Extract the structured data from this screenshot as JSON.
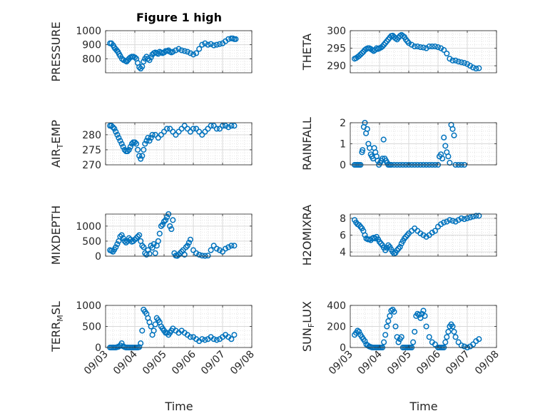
{
  "figure": {
    "title": "Figure 1 high",
    "xlabel": "Time"
  },
  "chart_data": [
    {
      "type": "scatter",
      "ylabel": "PRESSURE",
      "ylabel_sub": null,
      "xlim": [
        0,
        5
      ],
      "ylim": [
        700,
        1000
      ],
      "yticks": [
        800,
        900,
        1000
      ],
      "x": [
        0.15,
        0.2,
        0.26,
        0.3,
        0.34,
        0.38,
        0.42,
        0.46,
        0.5,
        0.56,
        0.62,
        0.68,
        0.72,
        0.76,
        0.8,
        0.85,
        0.9,
        0.95,
        1.0,
        1.05,
        1.1,
        1.15,
        1.2,
        1.25,
        1.3,
        1.35,
        1.4,
        1.45,
        1.5,
        1.55,
        1.6,
        1.65,
        1.7,
        1.75,
        1.8,
        1.85,
        1.9,
        1.95,
        2.0,
        2.05,
        2.1,
        2.15,
        2.2,
        2.25,
        2.3,
        2.4,
        2.5,
        2.6,
        2.7,
        2.8,
        2.9,
        3.0,
        3.1,
        3.2,
        3.3,
        3.4,
        3.5,
        3.6,
        3.7,
        3.8,
        3.9,
        4.0,
        4.1,
        4.2,
        4.3,
        4.35,
        4.4,
        4.45
      ],
      "y": [
        910,
        910,
        895,
        880,
        870,
        860,
        850,
        835,
        820,
        800,
        790,
        785,
        780,
        790,
        800,
        810,
        815,
        815,
        810,
        800,
        770,
        740,
        730,
        745,
        780,
        800,
        815,
        800,
        790,
        810,
        830,
        840,
        845,
        840,
        835,
        850,
        845,
        840,
        845,
        855,
        855,
        860,
        850,
        845,
        850,
        860,
        870,
        860,
        855,
        850,
        840,
        830,
        840,
        870,
        900,
        910,
        900,
        905,
        895,
        900,
        905,
        910,
        925,
        940,
        945,
        945,
        940,
        940
      ]
    },
    {
      "type": "scatter",
      "ylabel": "THETA",
      "ylabel_sub": null,
      "xlim": [
        0,
        5
      ],
      "ylim": [
        288,
        300
      ],
      "yticks": [
        290,
        295,
        300
      ],
      "x": [
        0.15,
        0.2,
        0.25,
        0.3,
        0.35,
        0.4,
        0.45,
        0.5,
        0.55,
        0.6,
        0.65,
        0.7,
        0.75,
        0.8,
        0.85,
        0.9,
        0.95,
        1.0,
        1.05,
        1.1,
        1.15,
        1.2,
        1.25,
        1.3,
        1.35,
        1.4,
        1.45,
        1.5,
        1.55,
        1.6,
        1.65,
        1.7,
        1.75,
        1.8,
        1.85,
        1.9,
        1.95,
        2.0,
        2.1,
        2.2,
        2.3,
        2.4,
        2.5,
        2.6,
        2.7,
        2.8,
        2.9,
        3.0,
        3.1,
        3.2,
        3.3,
        3.4,
        3.5,
        3.6,
        3.7,
        3.8,
        3.9,
        4.0,
        4.1,
        4.2,
        4.3,
        4.4
      ],
      "y": [
        292,
        292.2,
        292.5,
        292.8,
        293.2,
        293.6,
        294,
        294.5,
        294.8,
        295,
        295,
        294.8,
        294.5,
        294.2,
        294.5,
        295,
        294.8,
        295,
        295.2,
        295.5,
        296,
        296.5,
        297,
        297.5,
        298,
        298.5,
        298.6,
        298.2,
        297.8,
        297.5,
        298,
        298.5,
        298.8,
        298.5,
        298.2,
        297.5,
        297,
        296.5,
        296,
        295.5,
        295.5,
        295.3,
        295.2,
        295,
        295.5,
        295.5,
        295.5,
        295.3,
        295,
        294.5,
        293.5,
        292,
        291.5,
        291.5,
        291.2,
        291,
        290.8,
        290.5,
        290,
        289.5,
        289.2,
        289.3
      ]
    },
    {
      "type": "scatter",
      "ylabel": "AIR",
      "ylabel_sub": "TEMP",
      "xlim": [
        0,
        5
      ],
      "ylim": [
        270,
        284
      ],
      "yticks": [
        270,
        275,
        280
      ],
      "x": [
        0.15,
        0.2,
        0.25,
        0.3,
        0.35,
        0.4,
        0.45,
        0.5,
        0.55,
        0.6,
        0.65,
        0.7,
        0.75,
        0.8,
        0.85,
        0.9,
        0.95,
        1.0,
        1.05,
        1.1,
        1.15,
        1.2,
        1.25,
        1.3,
        1.35,
        1.4,
        1.45,
        1.5,
        1.55,
        1.6,
        1.7,
        1.8,
        1.9,
        2.0,
        2.1,
        2.2,
        2.3,
        2.4,
        2.5,
        2.6,
        2.7,
        2.8,
        2.9,
        3.0,
        3.1,
        3.2,
        3.3,
        3.4,
        3.5,
        3.6,
        3.7,
        3.8,
        3.9,
        4.0,
        4.1,
        4.2,
        4.3,
        4.4
      ],
      "y": [
        283,
        283,
        282.5,
        282,
        281,
        280,
        279,
        278,
        277,
        276,
        275,
        274.5,
        274.5,
        275,
        276,
        277,
        277.5,
        277.5,
        277,
        275,
        273,
        272,
        273,
        275,
        277,
        278,
        279,
        278,
        279,
        280,
        280,
        279,
        280,
        281,
        282,
        282,
        281,
        280,
        281,
        282,
        283,
        282,
        281,
        282,
        282,
        281,
        280,
        281,
        282,
        283,
        283,
        282,
        282,
        283,
        283,
        282.5,
        283,
        283
      ]
    },
    {
      "type": "scatter",
      "ylabel": "RAINFALL",
      "ylabel_sub": null,
      "xlim": [
        0,
        5
      ],
      "ylim": [
        0,
        2
      ],
      "yticks": [
        0,
        1,
        2
      ],
      "x": [
        0.15,
        0.2,
        0.25,
        0.3,
        0.35,
        0.4,
        0.42,
        0.46,
        0.5,
        0.54,
        0.58,
        0.62,
        0.66,
        0.7,
        0.74,
        0.78,
        0.82,
        0.86,
        0.9,
        0.94,
        0.98,
        1.02,
        1.06,
        1.1,
        1.14,
        1.18,
        1.22,
        1.26,
        1.3,
        1.35,
        1.4,
        1.5,
        1.6,
        1.7,
        1.8,
        1.9,
        2.0,
        2.1,
        2.2,
        2.3,
        2.4,
        2.5,
        2.6,
        2.7,
        2.8,
        2.9,
        3.0,
        3.05,
        3.1,
        3.15,
        3.2,
        3.25,
        3.3,
        3.35,
        3.4,
        3.45,
        3.5,
        3.55,
        3.6,
        3.7,
        3.8,
        3.9
      ],
      "y": [
        0,
        0,
        0,
        0,
        0,
        0.6,
        0.7,
        1.8,
        2.0,
        1.5,
        1.7,
        1.0,
        0.8,
        0.5,
        0.4,
        0.3,
        0.8,
        0.6,
        0.4,
        0.2,
        0,
        0.1,
        0.2,
        0.3,
        1.2,
        0.3,
        0.2,
        0.1,
        0,
        0,
        0,
        0,
        0,
        0,
        0,
        0,
        0,
        0,
        0,
        0,
        0,
        0,
        0,
        0,
        0,
        0,
        0,
        0.4,
        0.5,
        0.3,
        1.3,
        0.9,
        0.6,
        0.4,
        0.1,
        1.9,
        1.7,
        1.4,
        0,
        0,
        0,
        0
      ]
    },
    {
      "type": "scatter",
      "ylabel": "MIXDEPTH",
      "ylabel_sub": null,
      "xlim": [
        0,
        5
      ],
      "ylim": [
        0,
        1400
      ],
      "yticks": [
        0,
        500,
        1000
      ],
      "x": [
        0.15,
        0.2,
        0.25,
        0.3,
        0.35,
        0.4,
        0.45,
        0.5,
        0.55,
        0.6,
        0.65,
        0.7,
        0.75,
        0.8,
        0.85,
        0.9,
        0.95,
        1.0,
        1.05,
        1.1,
        1.15,
        1.2,
        1.25,
        1.3,
        1.35,
        1.4,
        1.45,
        1.5,
        1.55,
        1.6,
        1.65,
        1.7,
        1.75,
        1.8,
        1.85,
        1.9,
        1.95,
        2.0,
        2.05,
        2.1,
        2.15,
        2.2,
        2.25,
        2.3,
        2.35,
        2.4,
        2.45,
        2.5,
        2.55,
        2.6,
        2.65,
        2.7,
        2.75,
        2.8,
        2.85,
        2.9,
        3.0,
        3.1,
        3.2,
        3.3,
        3.4,
        3.5,
        3.6,
        3.7,
        3.8,
        3.9,
        4.0,
        4.1,
        4.2,
        4.3,
        4.4
      ],
      "y": [
        200,
        180,
        150,
        220,
        300,
        400,
        500,
        650,
        700,
        600,
        500,
        450,
        500,
        600,
        550,
        480,
        500,
        550,
        600,
        650,
        700,
        500,
        350,
        300,
        100,
        50,
        200,
        80,
        350,
        280,
        400,
        100,
        350,
        500,
        750,
        1000,
        1050,
        1150,
        1200,
        1300,
        1400,
        1000,
        900,
        1200,
        100,
        20,
        10,
        50,
        100,
        150,
        200,
        50,
        300,
        350,
        450,
        550,
        200,
        100,
        50,
        20,
        10,
        20,
        200,
        350,
        250,
        200,
        150,
        250,
        300,
        350,
        350
      ]
    },
    {
      "type": "scatter",
      "ylabel": "H2OMIXRA",
      "ylabel_sub": null,
      "xlim": [
        0,
        5
      ],
      "ylim": [
        3.5,
        8.5
      ],
      "yticks": [
        4,
        6,
        8
      ],
      "x": [
        0.15,
        0.2,
        0.25,
        0.3,
        0.35,
        0.4,
        0.45,
        0.5,
        0.55,
        0.6,
        0.65,
        0.7,
        0.75,
        0.8,
        0.85,
        0.9,
        0.95,
        1.0,
        1.05,
        1.1,
        1.15,
        1.2,
        1.25,
        1.3,
        1.35,
        1.4,
        1.45,
        1.5,
        1.55,
        1.6,
        1.65,
        1.7,
        1.75,
        1.8,
        1.85,
        1.9,
        1.95,
        2.0,
        2.1,
        2.2,
        2.3,
        2.4,
        2.5,
        2.6,
        2.7,
        2.8,
        2.9,
        3.0,
        3.1,
        3.2,
        3.3,
        3.4,
        3.5,
        3.6,
        3.7,
        3.8,
        3.9,
        4.0,
        4.1,
        4.2,
        4.3,
        4.4
      ],
      "y": [
        7.8,
        7.5,
        7.3,
        7.2,
        7.0,
        6.8,
        6.5,
        6.0,
        5.6,
        5.5,
        5.5,
        5.4,
        5.6,
        5.7,
        5.6,
        5.8,
        5.5,
        5.2,
        5.0,
        4.8,
        4.5,
        4.2,
        4.5,
        4.8,
        4.6,
        4.3,
        4.0,
        3.8,
        3.9,
        4.2,
        4.4,
        4.6,
        5.0,
        5.3,
        5.6,
        5.8,
        6.0,
        6.2,
        6.5,
        6.8,
        6.5,
        6.2,
        6.0,
        5.8,
        6.0,
        6.3,
        6.5,
        7.0,
        7.3,
        7.5,
        7.6,
        7.8,
        7.7,
        7.6,
        7.8,
        8.0,
        7.9,
        8.0,
        8.1,
        8.2,
        8.3,
        8.3
      ]
    },
    {
      "type": "scatter",
      "ylabel": "TERR",
      "ylabel_sub": "MSL",
      "xlim": [
        0,
        5
      ],
      "ylim": [
        0,
        1000
      ],
      "yticks": [
        0,
        500,
        1000
      ],
      "x": [
        0.15,
        0.2,
        0.25,
        0.3,
        0.35,
        0.4,
        0.45,
        0.5,
        0.55,
        0.6,
        0.65,
        0.7,
        0.75,
        0.8,
        0.85,
        0.9,
        0.95,
        1.0,
        1.05,
        1.1,
        1.15,
        1.2,
        1.25,
        1.3,
        1.35,
        1.4,
        1.45,
        1.5,
        1.55,
        1.6,
        1.65,
        1.7,
        1.75,
        1.8,
        1.85,
        1.9,
        1.95,
        2.0,
        2.05,
        2.1,
        2.15,
        2.2,
        2.25,
        2.3,
        2.4,
        2.5,
        2.6,
        2.7,
        2.8,
        2.9,
        3.0,
        3.1,
        3.2,
        3.3,
        3.4,
        3.5,
        3.6,
        3.7,
        3.8,
        3.9,
        4.0,
        4.1,
        4.2,
        4.3,
        4.4
      ],
      "y": [
        0,
        0,
        0,
        0,
        0,
        10,
        20,
        50,
        100,
        30,
        10,
        0,
        0,
        0,
        0,
        0,
        0,
        0,
        0,
        0,
        10,
        100,
        400,
        900,
        850,
        800,
        700,
        600,
        500,
        300,
        400,
        550,
        700,
        650,
        600,
        500,
        450,
        400,
        350,
        350,
        300,
        350,
        400,
        450,
        400,
        350,
        400,
        350,
        300,
        250,
        250,
        200,
        150,
        200,
        180,
        200,
        250,
        200,
        180,
        200,
        250,
        300,
        250,
        200,
        300
      ]
    },
    {
      "type": "scatter",
      "ylabel": "SUN",
      "ylabel_sub": "FLUX",
      "xlim": [
        0,
        5
      ],
      "ylim": [
        0,
        400
      ],
      "yticks": [
        0,
        200,
        400
      ],
      "x": [
        0.15,
        0.2,
        0.25,
        0.3,
        0.35,
        0.4,
        0.45,
        0.5,
        0.55,
        0.6,
        0.65,
        0.7,
        0.75,
        0.8,
        0.85,
        0.9,
        0.95,
        1.0,
        1.05,
        1.1,
        1.15,
        1.2,
        1.25,
        1.3,
        1.35,
        1.4,
        1.45,
        1.5,
        1.55,
        1.6,
        1.65,
        1.7,
        1.75,
        1.8,
        1.85,
        1.9,
        1.95,
        2.0,
        2.05,
        2.1,
        2.15,
        2.2,
        2.25,
        2.3,
        2.35,
        2.4,
        2.45,
        2.5,
        2.55,
        2.6,
        2.7,
        2.8,
        2.9,
        3.0,
        3.05,
        3.1,
        3.15,
        3.2,
        3.25,
        3.3,
        3.35,
        3.4,
        3.45,
        3.5,
        3.55,
        3.6,
        3.7,
        3.8,
        3.9,
        4.0,
        4.1,
        4.2,
        4.3,
        4.4
      ],
      "y": [
        120,
        140,
        160,
        150,
        120,
        100,
        80,
        60,
        30,
        20,
        10,
        5,
        0,
        0,
        0,
        0,
        0,
        0,
        0,
        0,
        50,
        120,
        200,
        250,
        300,
        350,
        360,
        340,
        200,
        100,
        50,
        80,
        100,
        0,
        0,
        0,
        0,
        0,
        0,
        0,
        50,
        150,
        300,
        320,
        310,
        280,
        320,
        350,
        300,
        200,
        100,
        50,
        30,
        0,
        0,
        0,
        0,
        0,
        50,
        100,
        150,
        200,
        220,
        200,
        150,
        100,
        50,
        20,
        10,
        0,
        10,
        30,
        60,
        80
      ]
    }
  ],
  "shared_x": {
    "tick_labels": [
      "09/03",
      "09/04",
      "09/05",
      "09/06",
      "09/07",
      "09/08"
    ]
  }
}
